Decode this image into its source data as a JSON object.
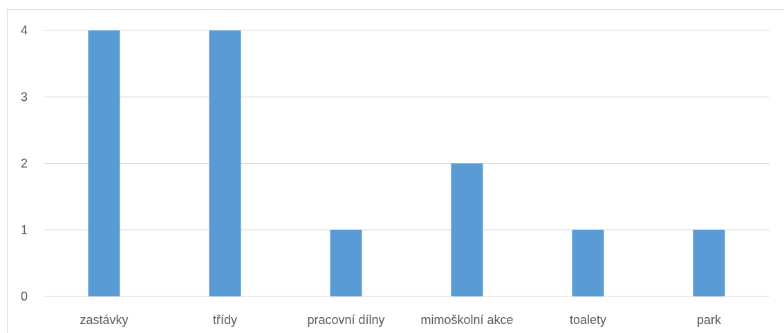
{
  "chart_data": {
    "type": "bar",
    "categories": [
      "zastávky",
      "třídy",
      "pracovní dílny",
      "mimoškolní akce",
      "toalety",
      "park"
    ],
    "values": [
      4,
      4,
      1,
      2,
      1,
      1
    ],
    "title": "",
    "xlabel": "",
    "ylabel": "",
    "ylim": [
      0,
      4
    ],
    "yticks": [
      "0",
      "1",
      "2",
      "3",
      "4"
    ],
    "grid": true,
    "legend": "none",
    "bar_color": "#5b9bd5",
    "grid_color": "#d9d9d9",
    "text_color": "#595959"
  }
}
